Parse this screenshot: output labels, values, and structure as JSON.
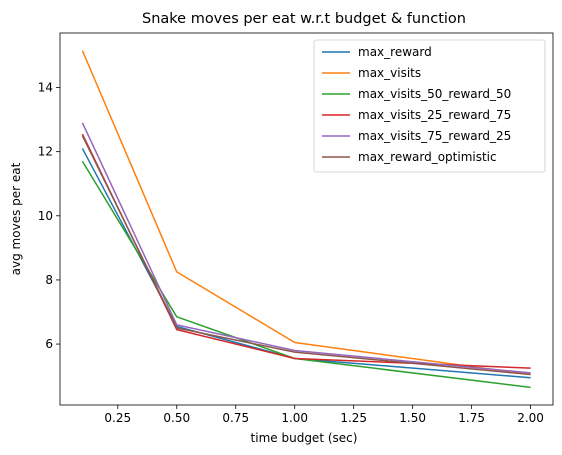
{
  "chart_data": {
    "type": "line",
    "title": "Snake moves per eat w.r.t budget & function",
    "xlabel": "time budget (sec)",
    "ylabel": "avg moves per eat",
    "xlim": [
      0.005,
      2.095
    ],
    "ylim": [
      4.1,
      15.7
    ],
    "xticks": [
      0.25,
      0.5,
      0.75,
      1.0,
      1.25,
      1.5,
      1.75,
      2.0
    ],
    "xtick_labels": [
      "0.25",
      "0.50",
      "0.75",
      "1.00",
      "1.25",
      "1.50",
      "1.75",
      "2.00"
    ],
    "yticks": [
      6,
      8,
      10,
      12,
      14
    ],
    "ytick_labels": [
      "6",
      "8",
      "10",
      "12",
      "14"
    ],
    "grid": false,
    "legend_position": "top-right",
    "x": [
      0.1,
      0.5,
      1.0,
      2.0
    ],
    "series": [
      {
        "name": "max_reward",
        "color": "#1f77b4",
        "values": [
          12.1,
          6.55,
          5.55,
          4.95
        ]
      },
      {
        "name": "max_visits",
        "color": "#ff7f0e",
        "values": [
          15.15,
          8.25,
          6.05,
          5.05
        ]
      },
      {
        "name": "max_visits_50_reward_50",
        "color": "#2ca02c",
        "values": [
          11.7,
          6.85,
          5.55,
          4.65
        ]
      },
      {
        "name": "max_visits_25_reward_75",
        "color": "#d62728",
        "values": [
          12.55,
          6.45,
          5.55,
          5.25
        ]
      },
      {
        "name": "max_visits_75_reward_25",
        "color": "#9467bd",
        "values": [
          12.9,
          6.6,
          5.8,
          5.1
        ]
      },
      {
        "name": "max_reward_optimistic",
        "color": "#8c564b",
        "values": [
          12.5,
          6.5,
          5.75,
          5.05
        ]
      }
    ]
  }
}
